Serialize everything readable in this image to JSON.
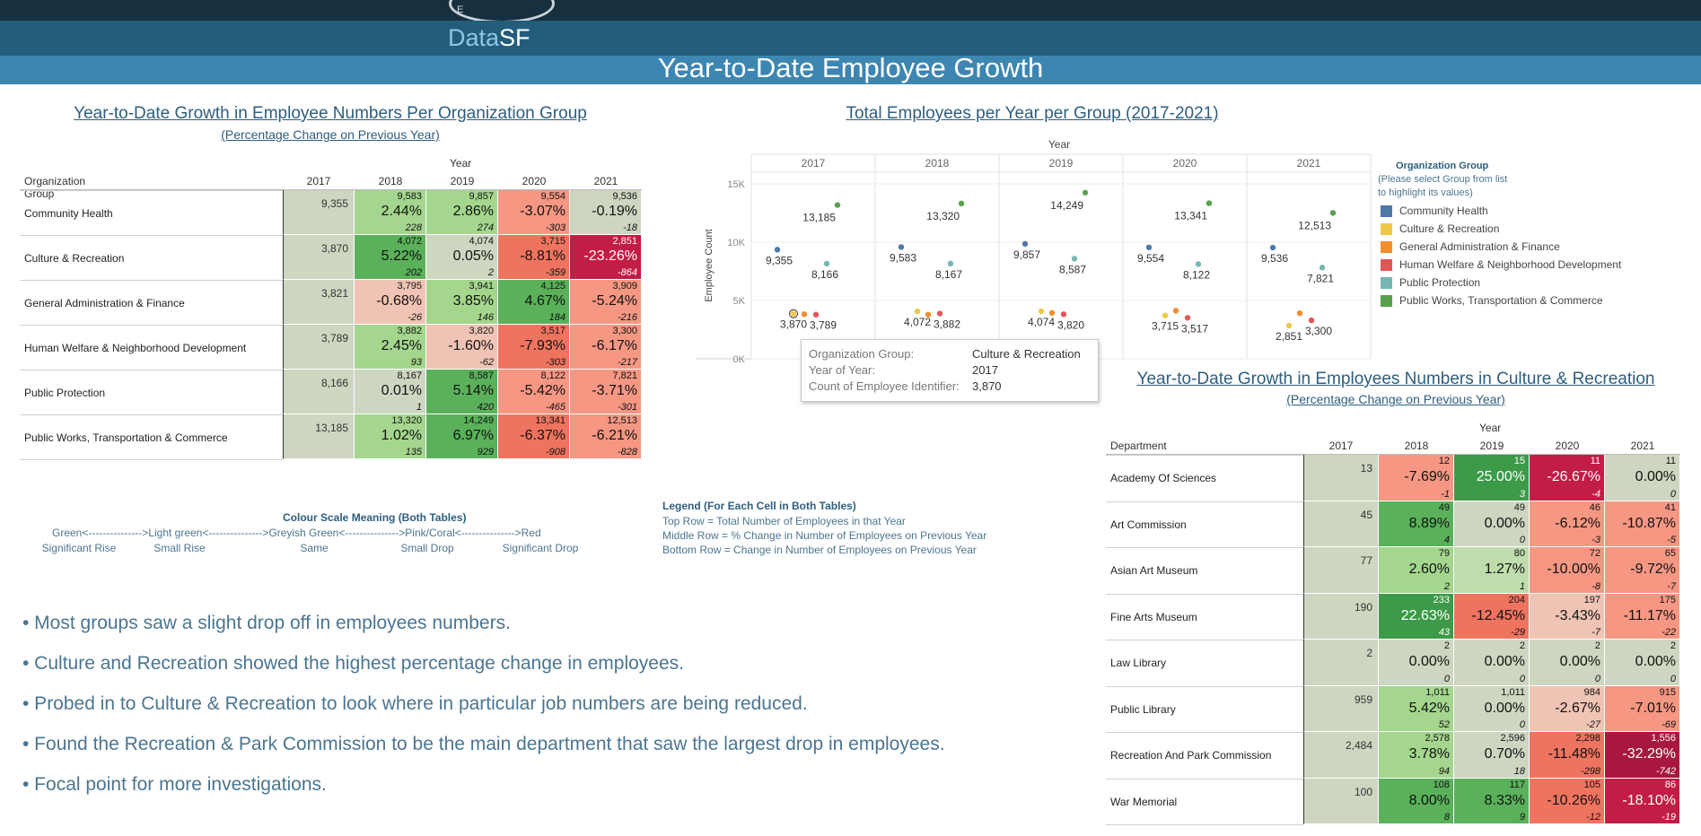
{
  "header": {
    "logo_text": "E",
    "brand_prefix": "Data",
    "brand_suffix": "SF",
    "title": "Year-to-Date Employee Growth"
  },
  "colors": {
    "sig_rise": "#5ab15a",
    "small_rise": "#a4d68e",
    "same": "#cdd6c1",
    "small_drop": "#f59783",
    "sig_drop": "#c21d46"
  },
  "org_table": {
    "title": "Year-to-Date Growth in Employee Numbers Per Organization Group",
    "subtitle": "(Percentage Change on Previous Year)",
    "year_header": "Year",
    "row_header": "Organization Group",
    "years": [
      "2017",
      "2018",
      "2019",
      "2020",
      "2021"
    ],
    "rows": [
      {
        "name": "Community Health",
        "base": "9,355",
        "cells": [
          {
            "total": "9,583",
            "pct": "2.44%",
            "change": "228",
            "tone": "small_rise"
          },
          {
            "total": "9,857",
            "pct": "2.86%",
            "change": "274",
            "tone": "small_rise"
          },
          {
            "total": "9,554",
            "pct": "-3.07%",
            "change": "-303",
            "tone": "small_drop"
          },
          {
            "total": "9,536",
            "pct": "-0.19%",
            "change": "-18",
            "tone": "same"
          }
        ]
      },
      {
        "name": "Culture & Recreation",
        "base": "3,870",
        "cells": [
          {
            "total": "4,072",
            "pct": "5.22%",
            "change": "202",
            "tone": "sig_rise"
          },
          {
            "total": "4,074",
            "pct": "0.05%",
            "change": "2",
            "tone": "same"
          },
          {
            "total": "3,715",
            "pct": "-8.81%",
            "change": "-359",
            "tone": "drop2"
          },
          {
            "total": "2,851",
            "pct": "-23.26%",
            "change": "-864",
            "tone": "sig_drop"
          }
        ]
      },
      {
        "name": "General Administration & Finance",
        "base": "3,821",
        "cells": [
          {
            "total": "3,795",
            "pct": "-0.68%",
            "change": "-26",
            "tone": "pink"
          },
          {
            "total": "3,941",
            "pct": "3.85%",
            "change": "146",
            "tone": "small_rise"
          },
          {
            "total": "4,125",
            "pct": "4.67%",
            "change": "184",
            "tone": "sig_rise"
          },
          {
            "total": "3,909",
            "pct": "-5.24%",
            "change": "-216",
            "tone": "small_drop"
          }
        ]
      },
      {
        "name": "Human Welfare & Neighborhood Development",
        "base": "3,789",
        "cells": [
          {
            "total": "3,882",
            "pct": "2.45%",
            "change": "93",
            "tone": "small_rise"
          },
          {
            "total": "3,820",
            "pct": "-1.60%",
            "change": "-62",
            "tone": "pink"
          },
          {
            "total": "3,517",
            "pct": "-7.93%",
            "change": "-303",
            "tone": "drop2"
          },
          {
            "total": "3,300",
            "pct": "-6.17%",
            "change": "-217",
            "tone": "small_drop"
          }
        ]
      },
      {
        "name": "Public Protection",
        "base": "8,166",
        "cells": [
          {
            "total": "8,167",
            "pct": "0.01%",
            "change": "1",
            "tone": "same"
          },
          {
            "total": "8,587",
            "pct": "5.14%",
            "change": "420",
            "tone": "sig_rise"
          },
          {
            "total": "8,122",
            "pct": "-5.42%",
            "change": "-465",
            "tone": "small_drop"
          },
          {
            "total": "7,821",
            "pct": "-3.71%",
            "change": "-301",
            "tone": "small_drop"
          }
        ]
      },
      {
        "name": "Public Works, Transportation & Commerce",
        "base": "13,185",
        "cells": [
          {
            "total": "13,320",
            "pct": "1.02%",
            "change": "135",
            "tone": "small_rise"
          },
          {
            "total": "14,249",
            "pct": "6.97%",
            "change": "929",
            "tone": "sig_rise"
          },
          {
            "total": "13,341",
            "pct": "-6.37%",
            "change": "-908",
            "tone": "drop2"
          },
          {
            "total": "12,513",
            "pct": "-6.21%",
            "change": "-828",
            "tone": "small_drop"
          }
        ]
      }
    ]
  },
  "dept_table": {
    "title": "Year-to-Date Growth in Employees Numbers in Culture & Recreation",
    "subtitle": "(Percentage Change on Previous Year)",
    "year_header": "Year",
    "row_header": "Department",
    "years": [
      "2017",
      "2018",
      "2019",
      "2020",
      "2021"
    ],
    "rows": [
      {
        "name": "Academy Of Sciences",
        "base": "13",
        "cells": [
          {
            "total": "12",
            "pct": "-7.69%",
            "change": "-1",
            "tone": "small_drop"
          },
          {
            "total": "15",
            "pct": "25.00%",
            "change": "3",
            "tone": "deep_rise"
          },
          {
            "total": "11",
            "pct": "-26.67%",
            "change": "-4",
            "tone": "sig_drop"
          },
          {
            "total": "11",
            "pct": "0.00%",
            "change": "0",
            "tone": "same"
          }
        ]
      },
      {
        "name": "Art Commission",
        "base": "45",
        "cells": [
          {
            "total": "49",
            "pct": "8.89%",
            "change": "4",
            "tone": "sig_rise"
          },
          {
            "total": "49",
            "pct": "0.00%",
            "change": "0",
            "tone": "same"
          },
          {
            "total": "46",
            "pct": "-6.12%",
            "change": "-3",
            "tone": "small_drop"
          },
          {
            "total": "41",
            "pct": "-10.87%",
            "change": "-5",
            "tone": "small_drop"
          }
        ]
      },
      {
        "name": "Asian Art Museum",
        "base": "77",
        "cells": [
          {
            "total": "79",
            "pct": "2.60%",
            "change": "2",
            "tone": "small_rise"
          },
          {
            "total": "80",
            "pct": "1.27%",
            "change": "1",
            "tone": "light_rise"
          },
          {
            "total": "72",
            "pct": "-10.00%",
            "change": "-8",
            "tone": "small_drop"
          },
          {
            "total": "65",
            "pct": "-9.72%",
            "change": "-7",
            "tone": "small_drop"
          }
        ]
      },
      {
        "name": "Fine Arts Museum",
        "base": "190",
        "cells": [
          {
            "total": "233",
            "pct": "22.63%",
            "change": "43",
            "tone": "deep_rise"
          },
          {
            "total": "204",
            "pct": "-12.45%",
            "change": "-29",
            "tone": "drop2"
          },
          {
            "total": "197",
            "pct": "-3.43%",
            "change": "-7",
            "tone": "pink"
          },
          {
            "total": "175",
            "pct": "-11.17%",
            "change": "-22",
            "tone": "small_drop"
          }
        ]
      },
      {
        "name": "Law Library",
        "base": "2",
        "cells": [
          {
            "total": "2",
            "pct": "0.00%",
            "change": "0",
            "tone": "same"
          },
          {
            "total": "2",
            "pct": "0.00%",
            "change": "0",
            "tone": "same"
          },
          {
            "total": "2",
            "pct": "0.00%",
            "change": "0",
            "tone": "same"
          },
          {
            "total": "2",
            "pct": "0.00%",
            "change": "0",
            "tone": "same"
          }
        ]
      },
      {
        "name": "Public Library",
        "base": "959",
        "cells": [
          {
            "total": "1,011",
            "pct": "5.42%",
            "change": "52",
            "tone": "small_rise"
          },
          {
            "total": "1,011",
            "pct": "0.00%",
            "change": "0",
            "tone": "same"
          },
          {
            "total": "984",
            "pct": "-2.67%",
            "change": "-27",
            "tone": "pink"
          },
          {
            "total": "915",
            "pct": "-7.01%",
            "change": "-69",
            "tone": "small_drop"
          }
        ]
      },
      {
        "name": "Recreation And Park Commission",
        "base": "2,484",
        "cells": [
          {
            "total": "2,578",
            "pct": "3.78%",
            "change": "94",
            "tone": "small_rise"
          },
          {
            "total": "2,596",
            "pct": "0.70%",
            "change": "18",
            "tone": "same"
          },
          {
            "total": "2,298",
            "pct": "-11.48%",
            "change": "-298",
            "tone": "drop2"
          },
          {
            "total": "1,556",
            "pct": "-32.29%",
            "change": "-742",
            "tone": "deep_drop"
          }
        ]
      },
      {
        "name": "War Memorial",
        "base": "100",
        "cells": [
          {
            "total": "108",
            "pct": "8.00%",
            "change": "8",
            "tone": "sig_rise"
          },
          {
            "total": "117",
            "pct": "8.33%",
            "change": "9",
            "tone": "sig_rise"
          },
          {
            "total": "105",
            "pct": "-10.26%",
            "change": "-12",
            "tone": "drop2"
          },
          {
            "total": "86",
            "pct": "-18.10%",
            "change": "-19",
            "tone": "sig_drop"
          }
        ]
      }
    ]
  },
  "chart_data": {
    "type": "scatter",
    "title": "Total Employees per Year per Group (2017-2021)",
    "facet_header": "Year",
    "facets": [
      "2017",
      "2018",
      "2019",
      "2020",
      "2021"
    ],
    "ylabel": "Employee Count",
    "ylim": [
      0,
      16000
    ],
    "yticks": [
      {
        "v": 0,
        "label": "0K"
      },
      {
        "v": 5000,
        "label": "5K"
      },
      {
        "v": 10000,
        "label": "10K"
      },
      {
        "v": 15000,
        "label": "15K"
      }
    ],
    "grid": true,
    "series": [
      {
        "name": "Community Health",
        "color": "#4e79a7",
        "values": [
          9355,
          9583,
          9857,
          9554,
          9536
        ],
        "labels": [
          "9,355",
          "9,583",
          "9,857",
          "9,554",
          "9,536"
        ]
      },
      {
        "name": "Culture & Recreation",
        "color": "#edc948",
        "values": [
          3870,
          4072,
          4074,
          3715,
          2851
        ],
        "labels": [
          "3,870",
          "4,072",
          "4,074",
          "3,715",
          "2,851"
        ]
      },
      {
        "name": "General Administration & Finance",
        "color": "#f28e2b",
        "values": [
          3821,
          3795,
          3941,
          4125,
          3909
        ],
        "labels": []
      },
      {
        "name": "Human Welfare & Neighborhood Development",
        "color": "#e15759",
        "values": [
          3789,
          3882,
          3820,
          3517,
          3300
        ],
        "labels": [
          "3,789",
          "3,882",
          "3,820",
          "3,517",
          "3,300"
        ]
      },
      {
        "name": "Public Protection",
        "color": "#76b7b2",
        "values": [
          8166,
          8167,
          8587,
          8122,
          7821
        ],
        "labels": [
          "8,166",
          "8,167",
          "8,587",
          "8,122",
          "7,821"
        ]
      },
      {
        "name": "Public Works, Transportation & Commerce",
        "color": "#59a14f",
        "values": [
          13185,
          13320,
          14249,
          13341,
          12513
        ],
        "labels": [
          "13,185",
          "13,320",
          "14,249",
          "13,341",
          "12,513"
        ]
      }
    ],
    "legend": {
      "title": "Organization Group",
      "subtitle1": "(Please select Group from list",
      "subtitle2": "to highlight its values)",
      "placement": "right"
    }
  },
  "tooltip": {
    "k1": "Organization Group:",
    "v1": "Culture & Recreation",
    "k2": "Year of Year:",
    "v2": "2017",
    "k3": "Count of Employee Identifier:",
    "v3": "3,870"
  },
  "colour_scale": {
    "title": "Colour Scale Meaning (Both Tables)",
    "line": "Green<--------------->Light green<--------------->Greyish Green<--------------->Pink/Coral<--------------->Red",
    "labels": [
      "Significant Rise",
      "Small Rise",
      "Same",
      "Small Drop",
      "Significant Drop"
    ]
  },
  "cell_legend": {
    "title": "Legend (For Each Cell in Both Tables)",
    "lines": [
      "Top Row = Total Number of Employees in that Year",
      "Middle Row = % Change in Number of Employees on Previous Year",
      "Bottom Row = Change in Number of Employees on Previous Year"
    ]
  },
  "bullets": [
    "• Most groups saw a slight drop off in employees numbers.",
    "• Culture and Recreation showed the highest percentage change in employees.",
    "• Probed in to Culture & Recreation to look where in particular job numbers are being reduced.",
    "• Found the Recreation & Park Commission to be the main department that saw the largest drop in employees.",
    "• Focal point for more investigations."
  ]
}
